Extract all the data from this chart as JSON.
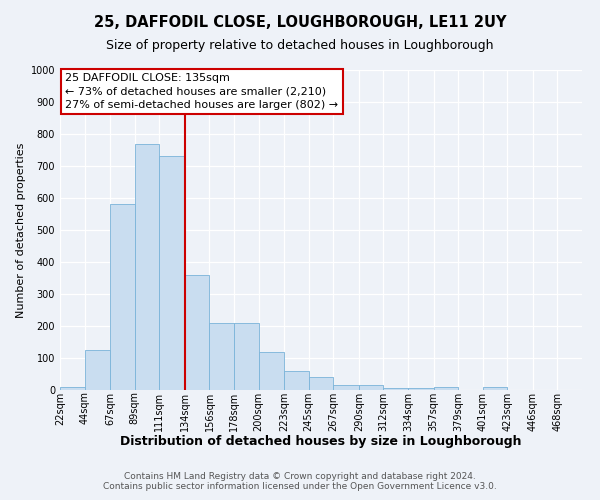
{
  "title": "25, DAFFODIL CLOSE, LOUGHBOROUGH, LE11 2UY",
  "subtitle": "Size of property relative to detached houses in Loughborough",
  "xlabel": "Distribution of detached houses by size in Loughborough",
  "ylabel": "Number of detached properties",
  "bar_color": "#c9ddf0",
  "bar_edge_color": "#7ab3d9",
  "bin_labels": [
    "22sqm",
    "44sqm",
    "67sqm",
    "89sqm",
    "111sqm",
    "134sqm",
    "156sqm",
    "178sqm",
    "200sqm",
    "223sqm",
    "245sqm",
    "267sqm",
    "290sqm",
    "312sqm",
    "334sqm",
    "357sqm",
    "379sqm",
    "401sqm",
    "423sqm",
    "446sqm",
    "468sqm"
  ],
  "bar_heights": [
    10,
    125,
    580,
    770,
    730,
    360,
    210,
    210,
    120,
    60,
    40,
    15,
    15,
    5,
    5,
    8,
    0,
    8,
    0,
    0,
    0
  ],
  "bin_edges": [
    22,
    44,
    67,
    89,
    111,
    134,
    156,
    178,
    200,
    223,
    245,
    267,
    290,
    312,
    334,
    357,
    379,
    401,
    423,
    446,
    468,
    490
  ],
  "vline_x": 134,
  "vline_color": "#cc0000",
  "ylim": [
    0,
    1000
  ],
  "yticks": [
    0,
    100,
    200,
    300,
    400,
    500,
    600,
    700,
    800,
    900,
    1000
  ],
  "annotation_title": "25 DAFFODIL CLOSE: 135sqm",
  "annotation_line1": "← 73% of detached houses are smaller (2,210)",
  "annotation_line2": "27% of semi-detached houses are larger (802) →",
  "annotation_box_color": "#ffffff",
  "annotation_box_edge": "#cc0000",
  "background_color": "#eef2f8",
  "grid_color": "#ffffff",
  "footer1": "Contains HM Land Registry data © Crown copyright and database right 2024.",
  "footer2": "Contains public sector information licensed under the Open Government Licence v3.0.",
  "title_fontsize": 10.5,
  "subtitle_fontsize": 9,
  "xlabel_fontsize": 9,
  "ylabel_fontsize": 8,
  "tick_fontsize": 7,
  "annotation_fontsize": 8,
  "footer_fontsize": 6.5
}
